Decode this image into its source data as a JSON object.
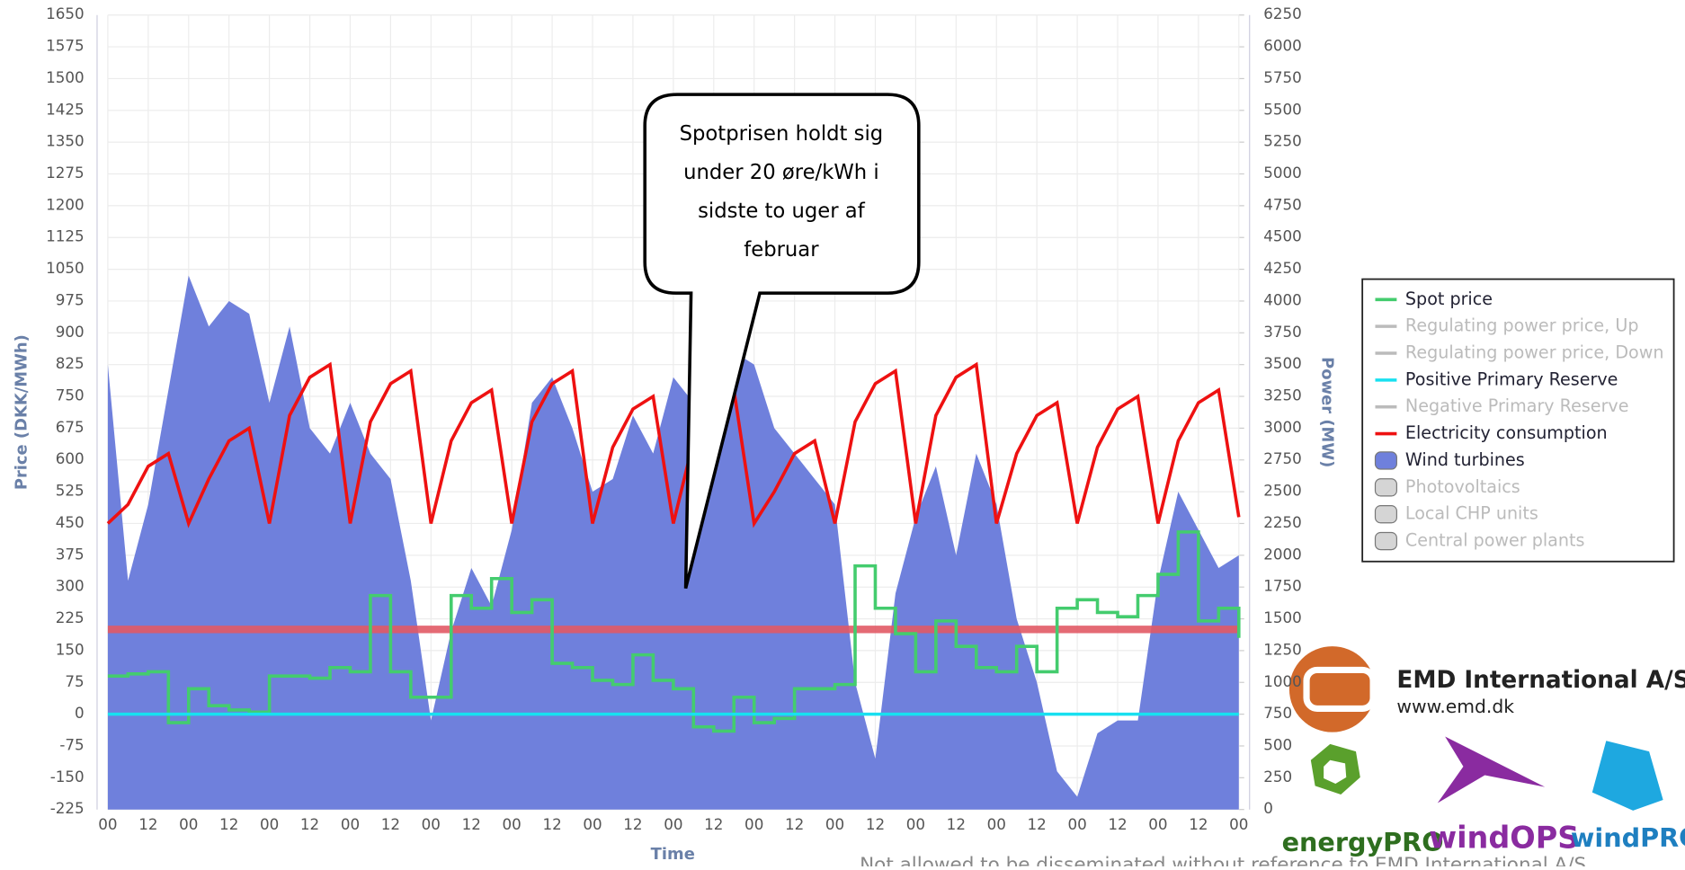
{
  "chart_data": {
    "type": "line",
    "y_label": "Price (DKK/MWh)",
    "y2_label": "Power (MW)",
    "x_label": "Time",
    "x": [
      0,
      6,
      12,
      18,
      24,
      30,
      36,
      42,
      48,
      54,
      60,
      66,
      72,
      78,
      84,
      90,
      96,
      102,
      108,
      114,
      120,
      126,
      132,
      138,
      144,
      150,
      156,
      162,
      168,
      174,
      180,
      186,
      192,
      198,
      204,
      210,
      216,
      222,
      228,
      234,
      240,
      246,
      252,
      258,
      264,
      270,
      276,
      282,
      288,
      294,
      300,
      306,
      312,
      318,
      324,
      330,
      336
    ],
    "xlim": [
      0,
      336
    ],
    "xticks": [
      {
        "value": 0,
        "label": "00"
      },
      {
        "value": 12,
        "label": "12"
      },
      {
        "value": 24,
        "label": "00"
      },
      {
        "value": 36,
        "label": "12"
      },
      {
        "value": 48,
        "label": "00"
      },
      {
        "value": 60,
        "label": "12"
      },
      {
        "value": 72,
        "label": "00"
      },
      {
        "value": 84,
        "label": "12"
      },
      {
        "value": 96,
        "label": "00"
      },
      {
        "value": 108,
        "label": "12"
      },
      {
        "value": 120,
        "label": "00"
      },
      {
        "value": 132,
        "label": "12"
      },
      {
        "value": 144,
        "label": "00"
      },
      {
        "value": 156,
        "label": "12"
      },
      {
        "value": 168,
        "label": "00"
      },
      {
        "value": 180,
        "label": "12"
      },
      {
        "value": 192,
        "label": "00"
      },
      {
        "value": 204,
        "label": "12"
      },
      {
        "value": 216,
        "label": "00"
      },
      {
        "value": 228,
        "label": "12"
      },
      {
        "value": 240,
        "label": "00"
      },
      {
        "value": 252,
        "label": "12"
      },
      {
        "value": 264,
        "label": "00"
      },
      {
        "value": 276,
        "label": "12"
      },
      {
        "value": 288,
        "label": "00"
      },
      {
        "value": 300,
        "label": "12"
      },
      {
        "value": 312,
        "label": "00"
      },
      {
        "value": 324,
        "label": "12"
      },
      {
        "value": 336,
        "label": "00"
      }
    ],
    "ylim": [
      -225,
      1650
    ],
    "yticks": [
      -225,
      -150,
      -75,
      0,
      75,
      150,
      225,
      300,
      375,
      450,
      525,
      600,
      675,
      750,
      825,
      900,
      975,
      1050,
      1125,
      1200,
      1275,
      1350,
      1425,
      1500,
      1575,
      1650
    ],
    "y2lim": [
      0,
      6250
    ],
    "y2ticks": [
      0,
      250,
      500,
      750,
      1000,
      1250,
      1500,
      1750,
      2000,
      2250,
      2500,
      2750,
      3000,
      3250,
      3500,
      3750,
      4000,
      4250,
      4500,
      4750,
      5000,
      5250,
      5500,
      5750,
      6000,
      6250
    ],
    "grid": true,
    "series": [
      {
        "name": "Spot price",
        "color": "#44cc6e",
        "symbol": "line",
        "step": true,
        "values": [
          90,
          95,
          100,
          -20,
          60,
          20,
          10,
          5,
          90,
          90,
          85,
          110,
          100,
          280,
          100,
          40,
          40,
          280,
          250,
          320,
          240,
          270,
          120,
          110,
          80,
          70,
          140,
          80,
          60,
          -30,
          -40,
          40,
          -20,
          -10,
          60,
          60,
          70,
          350,
          250,
          190,
          100,
          220,
          160,
          110,
          100,
          160,
          100,
          250,
          270,
          240,
          230,
          280,
          330,
          430,
          220,
          250,
          180
        ]
      },
      {
        "name": "Regulating power price, Up",
        "color": "#bbbbbb",
        "symbol": "line",
        "visible": false
      },
      {
        "name": "Regulating power price, Down",
        "color": "#bbbbbb",
        "symbol": "line",
        "visible": false
      },
      {
        "name": "Positive Primary Reserve",
        "color": "#18e0f0",
        "symbol": "line",
        "values": [
          0,
          0,
          0,
          0,
          0,
          0,
          0,
          0,
          0,
          0,
          0,
          0,
          0,
          0,
          0,
          0,
          0,
          0,
          0,
          0,
          0,
          0,
          0,
          0,
          0,
          0,
          0,
          0,
          0,
          0,
          0,
          0,
          0,
          0,
          0,
          0,
          0,
          0,
          0,
          0,
          0,
          0,
          0,
          0,
          0,
          0,
          0,
          0,
          0,
          0,
          0,
          0,
          0,
          0,
          0,
          0,
          0
        ]
      },
      {
        "name": "Negative Primary Reserve",
        "color": "#bbbbbb",
        "symbol": "line",
        "visible": false
      },
      {
        "name": "Electricity consumption",
        "color": "#ee1111",
        "symbol": "line",
        "axis": "y2",
        "values": [
          2250,
          2400,
          2700,
          2800,
          2250,
          2600,
          2900,
          3000,
          2250,
          3100,
          3400,
          3500,
          2250,
          3050,
          3350,
          3450,
          2250,
          2900,
          3200,
          3300,
          2250,
          3050,
          3350,
          3450,
          2250,
          2850,
          3150,
          3250,
          2250,
          2900,
          3200,
          3300,
          2250,
          2500,
          2800,
          2900,
          2250,
          3050,
          3350,
          3450,
          2250,
          3100,
          3400,
          3500,
          2250,
          2800,
          3100,
          3200,
          2250,
          2850,
          3150,
          3250,
          2250,
          2900,
          3200,
          3300,
          2300
        ]
      },
      {
        "name": "Wind turbines",
        "color": "#6f80dc",
        "symbol": "box",
        "axis": "y2",
        "area": true,
        "values": [
          3500,
          1800,
          2400,
          3300,
          4200,
          3800,
          4000,
          3900,
          3200,
          3800,
          3000,
          2800,
          3200,
          2800,
          2600,
          1800,
          700,
          1400,
          1900,
          1600,
          2200,
          3200,
          3400,
          3000,
          2500,
          2600,
          3100,
          2800,
          3400,
          3200,
          3300,
          3600,
          3500,
          3000,
          2800,
          2600,
          2400,
          1000,
          400,
          1700,
          2300,
          2700,
          2000,
          2800,
          2400,
          1500,
          1000,
          300,
          100,
          600,
          700,
          700,
          1800,
          2500,
          2200,
          1900,
          2000
        ]
      },
      {
        "name": "Photovoltaics",
        "color": "#bbbbbb",
        "symbol": "box",
        "visible": false
      },
      {
        "name": "Local CHP units",
        "color": "#bbbbbb",
        "symbol": "box",
        "visible": false
      },
      {
        "name": "Central power plants",
        "color": "#bbbbbb",
        "symbol": "box",
        "visible": false
      }
    ],
    "reference_lines": [
      {
        "value": 200,
        "color": "#e25a66"
      }
    ],
    "annotation": [
      "Spotprisen holdt sig",
      "under 20 øre/kWh i",
      "sidste to uger af",
      "februar"
    ]
  },
  "branding": {
    "company": "EMD International  A/S",
    "url": "www.emd.dk",
    "products": [
      "energyPRO",
      "windOPS",
      "windPRO"
    ],
    "footer": "Not allowed to be disseminated without reference to EMD International A/S"
  }
}
